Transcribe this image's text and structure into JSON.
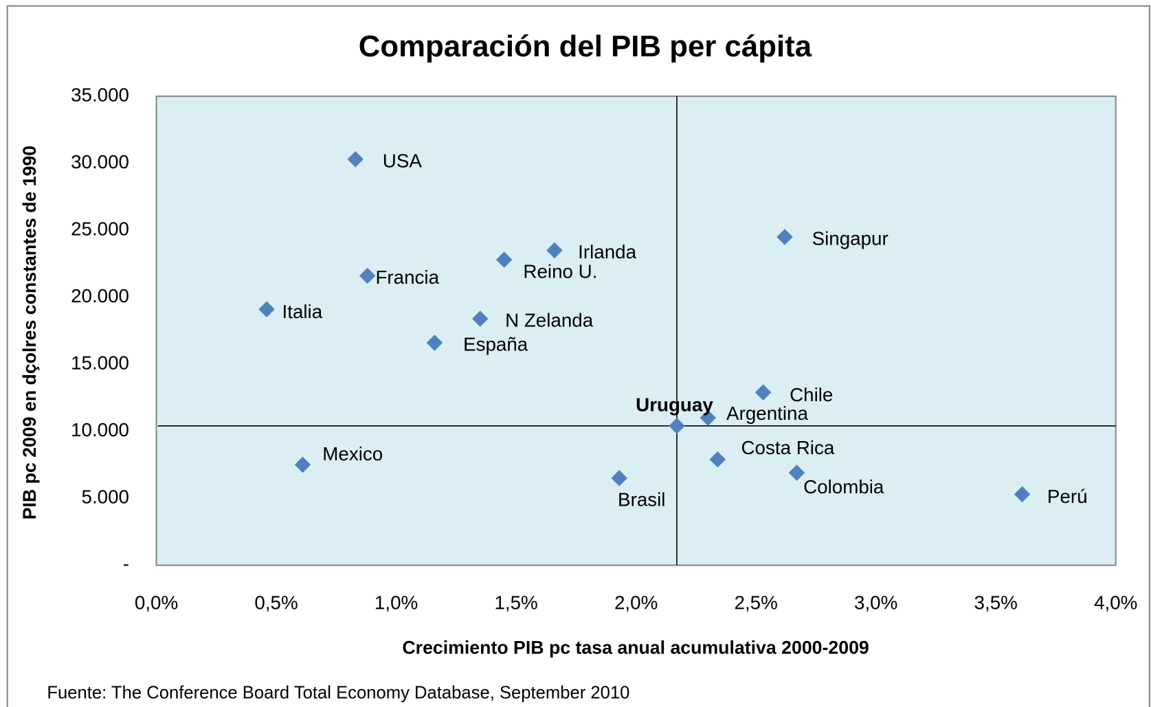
{
  "chart_data": {
    "type": "scatter",
    "title": "Comparación del PIB per cápita",
    "xlabel": "Crecimiento PIB pc tasa anual acumulativa 2000-2009",
    "ylabel": "PIB pc 2009 en dçolres constantes de 1990",
    "source": "Fuente: The Conference Board Total Economy Database, September 2010",
    "color": "#4f81bd",
    "labels": [
      "USA",
      "Francia",
      "Italia",
      "Reino U.",
      "Irlanda",
      "N Zelanda",
      "España",
      "Singapur",
      "Chile",
      "Argentina",
      "Uruguay",
      "Costa Rica",
      "Colombia",
      "Mexico",
      "Brasil",
      "Perú"
    ],
    "x": [
      0.83,
      0.88,
      0.46,
      1.45,
      1.66,
      1.35,
      1.16,
      2.62,
      2.53,
      2.3,
      2.17,
      2.34,
      2.67,
      0.61,
      1.93,
      3.61
    ],
    "values": [
      30300,
      21600,
      19100,
      22800,
      23500,
      18400,
      16600,
      24500,
      12900,
      11000,
      10400,
      7900,
      6900,
      7500,
      6500,
      5300
    ],
    "xlim": [
      0,
      4
    ],
    "xticks": [
      {
        "value": 0,
        "label": "0,0%"
      },
      {
        "value": 0.5,
        "label": "0,5%"
      },
      {
        "value": 1,
        "label": "1,0%"
      },
      {
        "value": 1.5,
        "label": "1,5%"
      },
      {
        "value": 2,
        "label": "2,0%"
      },
      {
        "value": 2.5,
        "label": "2,5%"
      },
      {
        "value": 3,
        "label": "3,0%"
      },
      {
        "value": 3.5,
        "label": "3,5%"
      },
      {
        "value": 4,
        "label": "4,0%"
      }
    ],
    "ylim": [
      0,
      35000
    ],
    "yticks": [
      {
        "value": 0,
        "label": "-"
      },
      {
        "value": 5000,
        "label": "5.000"
      },
      {
        "value": 10000,
        "label": "10.000"
      },
      {
        "value": 15000,
        "label": "15.000"
      },
      {
        "value": 20000,
        "label": "20.000"
      },
      {
        "value": 25000,
        "label": "25.000"
      },
      {
        "value": 30000,
        "label": "30.000"
      },
      {
        "value": 35000,
        "label": "35.000"
      }
    ]
  }
}
